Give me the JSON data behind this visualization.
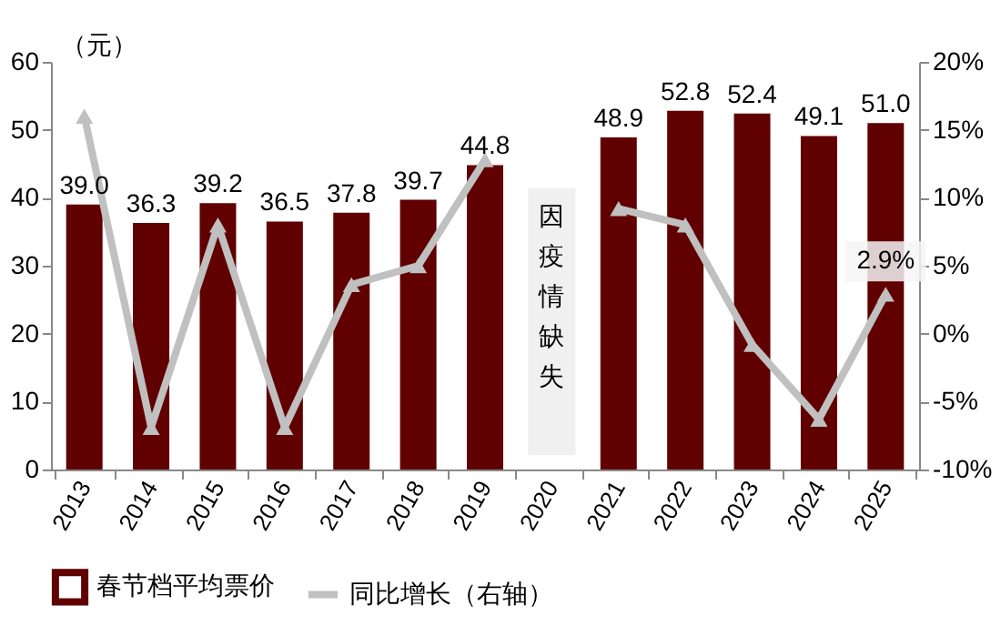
{
  "chart_data": {
    "type": "bar",
    "categories": [
      "2013",
      "2014",
      "2015",
      "2016",
      "2017",
      "2018",
      "2019",
      "2020",
      "2021",
      "2022",
      "2023",
      "2024",
      "2025"
    ],
    "ylabel": "（元）",
    "series": [
      {
        "name": "春节档平均票价",
        "color": "#600000",
        "values": [
          39.0,
          36.3,
          39.2,
          36.5,
          37.8,
          39.7,
          44.8,
          null,
          48.9,
          52.8,
          52.4,
          49.1,
          51.0
        ],
        "value_labels": [
          "39.0",
          "36.3",
          "39.2",
          "36.5",
          "37.8",
          "39.7",
          "44.8",
          null,
          "48.9",
          "52.8",
          "52.4",
          "49.1",
          "51.0"
        ]
      },
      {
        "name": "同比增长（右轴）",
        "type": "line",
        "axis": "y2",
        "color": "#c0c0c0",
        "marker": "triangle",
        "values": [
          16.0,
          -6.9,
          8.0,
          -6.9,
          3.6,
          5.0,
          12.8,
          null,
          9.2,
          8.0,
          -0.8,
          -6.3,
          2.9
        ],
        "value_labels": [
          null,
          null,
          null,
          null,
          null,
          null,
          null,
          null,
          null,
          null,
          null,
          null,
          "2.9%"
        ]
      }
    ],
    "ylim": [
      0,
      60
    ],
    "yticks": [
      0,
      10,
      20,
      30,
      40,
      50,
      60
    ],
    "y2lim": [
      -10,
      20
    ],
    "y2ticks": [
      {
        "value": -10,
        "label": "-10%"
      },
      {
        "value": -5,
        "label": "-5%"
      },
      {
        "value": 0,
        "label": "0%"
      },
      {
        "value": 5,
        "label": "5%"
      },
      {
        "value": 10,
        "label": "10%"
      },
      {
        "value": 15,
        "label": "15%"
      },
      {
        "value": 20,
        "label": "20%"
      }
    ],
    "bands": [
      {
        "axis": "x",
        "from": "2020",
        "to": "2020",
        "label": "因疫情缺失",
        "color": "#f0f0f0"
      }
    ],
    "legend": "bottom",
    "grid": false
  }
}
